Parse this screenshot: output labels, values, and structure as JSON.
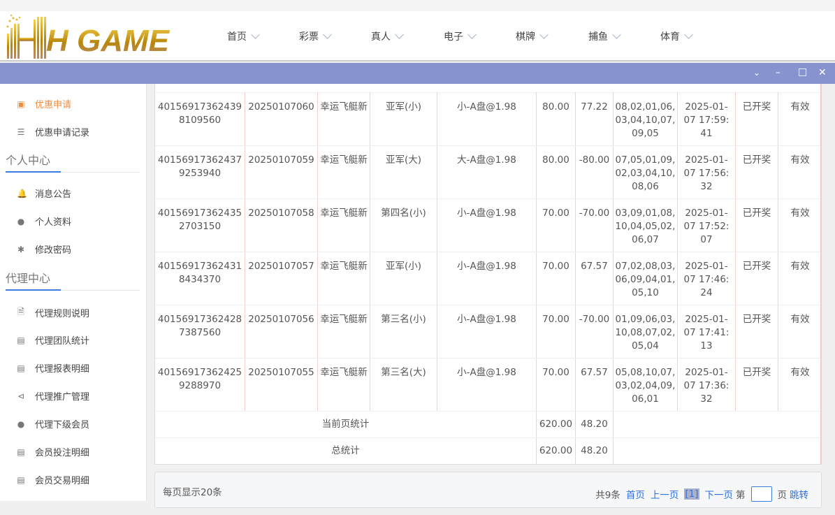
{
  "header": {
    "logo_text": "H GAME",
    "nav": [
      "首页",
      "彩票",
      "真人",
      "电子",
      "棋牌",
      "捕鱼",
      "体育"
    ]
  },
  "window_controls": [
    "chevron-down",
    "minimize",
    "maximize",
    "close"
  ],
  "sidebar": {
    "items_top": [
      {
        "label": "优惠申请",
        "icon": "gift-icon",
        "active": true
      },
      {
        "label": "优惠申请记录",
        "icon": "list-icon"
      }
    ],
    "section1": "个人中心",
    "items1": [
      {
        "label": "消息公告",
        "icon": "bell-icon"
      },
      {
        "label": "个人资料",
        "icon": "user-icon"
      },
      {
        "label": "修改密码",
        "icon": "gear-icon"
      }
    ],
    "section2": "代理中心",
    "items2": [
      {
        "label": "代理规则说明",
        "icon": "document-icon"
      },
      {
        "label": "代理团队统计",
        "icon": "book-icon"
      },
      {
        "label": "代理报表明细",
        "icon": "book-icon"
      },
      {
        "label": "代理推广管理",
        "icon": "share-icon"
      },
      {
        "label": "代理下级会员",
        "icon": "users-icon"
      },
      {
        "label": "会员投注明细",
        "icon": "clipboard-icon"
      },
      {
        "label": "会员交易明细",
        "icon": "receipt-icon"
      }
    ]
  },
  "table": {
    "rows": [
      [
        "401569173624398109560",
        "20250107060",
        "幸运飞艇新",
        "亚军(小)",
        "小-A盘@1.98",
        "80.00",
        "77.22",
        "08,02,01,06,03,04,10,07,09,05",
        "2025-01-07 17:59:41",
        "已开奖",
        "有效"
      ],
      [
        "401569173624379253940",
        "20250107059",
        "幸运飞艇新",
        "亚军(大)",
        "大-A盘@1.98",
        "80.00",
        "-80.00",
        "07,05,01,09,02,03,04,10,08,06",
        "2025-01-07 17:56:32",
        "已开奖",
        "有效"
      ],
      [
        "401569173624352703150",
        "20250107058",
        "幸运飞艇新",
        "第四名(小)",
        "小-A盘@1.98",
        "70.00",
        "-70.00",
        "03,09,01,08,10,04,05,02,06,07",
        "2025-01-07 17:52:07",
        "已开奖",
        "有效"
      ],
      [
        "401569173624318434370",
        "20250107057",
        "幸运飞艇新",
        "亚军(小)",
        "小-A盘@1.98",
        "70.00",
        "67.57",
        "07,02,08,03,06,09,04,01,05,10",
        "2025-01-07 17:46:24",
        "已开奖",
        "有效"
      ],
      [
        "401569173624287387560",
        "20250107056",
        "幸运飞艇新",
        "第三名(小)",
        "小-A盘@1.98",
        "70.00",
        "-70.00",
        "01,09,06,03,10,08,07,02,05,04",
        "2025-01-07 17:41:13",
        "已开奖",
        "有效"
      ],
      [
        "401569173624259288970",
        "20250107055",
        "幸运飞艇新",
        "第三名(大)",
        "小-A盘@1.98",
        "70.00",
        "67.57",
        "05,08,10,07,03,02,04,09,06,01",
        "2025-01-07 17:36:32",
        "已开奖",
        "有效"
      ]
    ],
    "summary": [
      {
        "label": "当前页统计",
        "amount": "620.00",
        "profit": "48.20"
      },
      {
        "label": "总统计",
        "amount": "620.00",
        "profit": "48.20"
      }
    ]
  },
  "pager": {
    "per_page": "每页显示20条",
    "total": "共9条",
    "first": "首页",
    "prev": "上一页",
    "current": "[1]",
    "next": "下一页",
    "page_prefix": "第",
    "page_suffix": "页",
    "jump": "跳转"
  }
}
